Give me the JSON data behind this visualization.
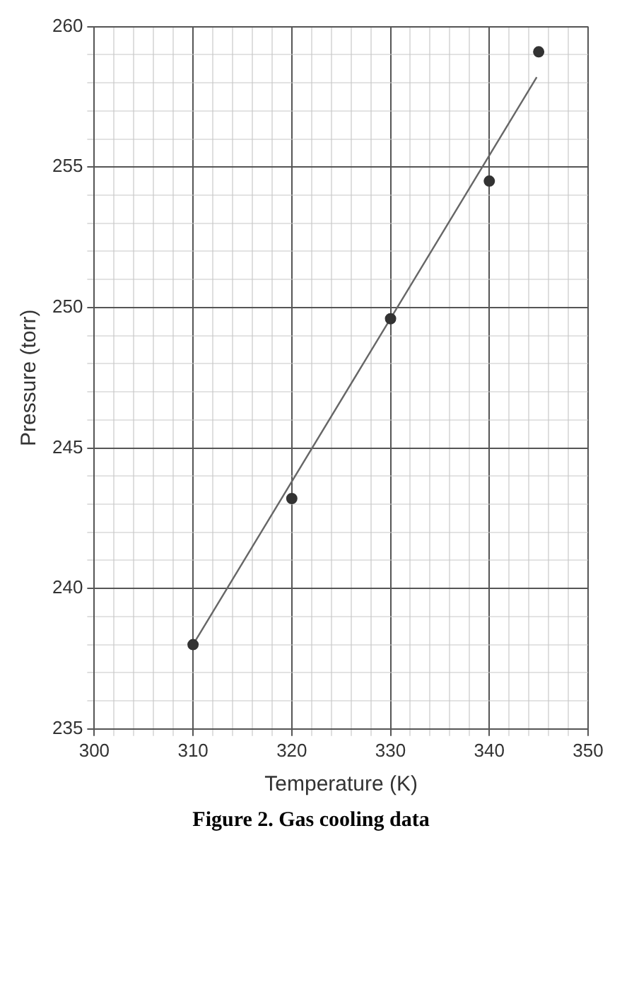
{
  "chart_data": {
    "type": "scatter",
    "xlabel": "Temperature (K)",
    "ylabel": "Pressure (torr)",
    "x": [
      310,
      320,
      330,
      340,
      345
    ],
    "series": [
      {
        "type": "scatter",
        "color": "#333333",
        "values": [
          238,
          243.2,
          249.6,
          254.5,
          259.1
        ],
        "marker": "circle"
      },
      {
        "type": "line",
        "color": "#666666",
        "x": [
          310,
          344.8
        ],
        "values": [
          238,
          258.2
        ],
        "marker": "none"
      }
    ],
    "xlim": [
      300,
      350
    ],
    "xticks": [
      300,
      {
        "value": 302,
        "label": null
      },
      {
        "value": 304,
        "label": null
      },
      {
        "value": 306,
        "label": null
      },
      {
        "value": 308,
        "label": null
      },
      310,
      {
        "value": 312,
        "label": null
      },
      {
        "value": 314,
        "label": null
      },
      {
        "value": 316,
        "label": null
      },
      {
        "value": 318,
        "label": null
      },
      320,
      {
        "value": 322,
        "label": null
      },
      {
        "value": 324,
        "label": null
      },
      {
        "value": 326,
        "label": null
      },
      {
        "value": 328,
        "label": null
      },
      330,
      {
        "value": 332,
        "label": null
      },
      {
        "value": 334,
        "label": null
      },
      {
        "value": 336,
        "label": null
      },
      {
        "value": 338,
        "label": null
      },
      340,
      {
        "value": 342,
        "label": null
      },
      {
        "value": 344,
        "label": null
      },
      {
        "value": 346,
        "label": null
      },
      {
        "value": 348,
        "label": null
      },
      350
    ],
    "ylim": [
      235,
      260
    ],
    "yticks": [
      235,
      {
        "value": 236,
        "label": null
      },
      {
        "value": 237,
        "label": null
      },
      {
        "value": 238,
        "label": null
      },
      {
        "value": 239,
        "label": null
      },
      240,
      {
        "value": 241,
        "label": null
      },
      {
        "value": 242,
        "label": null
      },
      {
        "value": 243,
        "label": null
      },
      {
        "value": 244,
        "label": null
      },
      245,
      {
        "value": 246,
        "label": null
      },
      {
        "value": 247,
        "label": null
      },
      {
        "value": 248,
        "label": null
      },
      {
        "value": 249,
        "label": null
      },
      250,
      {
        "value": 251,
        "label": null
      },
      {
        "value": 252,
        "label": null
      },
      {
        "value": 253,
        "label": null
      },
      {
        "value": 254,
        "label": null
      },
      255,
      {
        "value": 256,
        "label": null
      },
      {
        "value": 257,
        "label": null
      },
      {
        "value": 258,
        "label": null
      },
      {
        "value": 259,
        "label": null
      },
      260
    ],
    "grid": true,
    "legend": false,
    "annotations": [
      "Figure 2. Gas cooling data"
    ]
  }
}
